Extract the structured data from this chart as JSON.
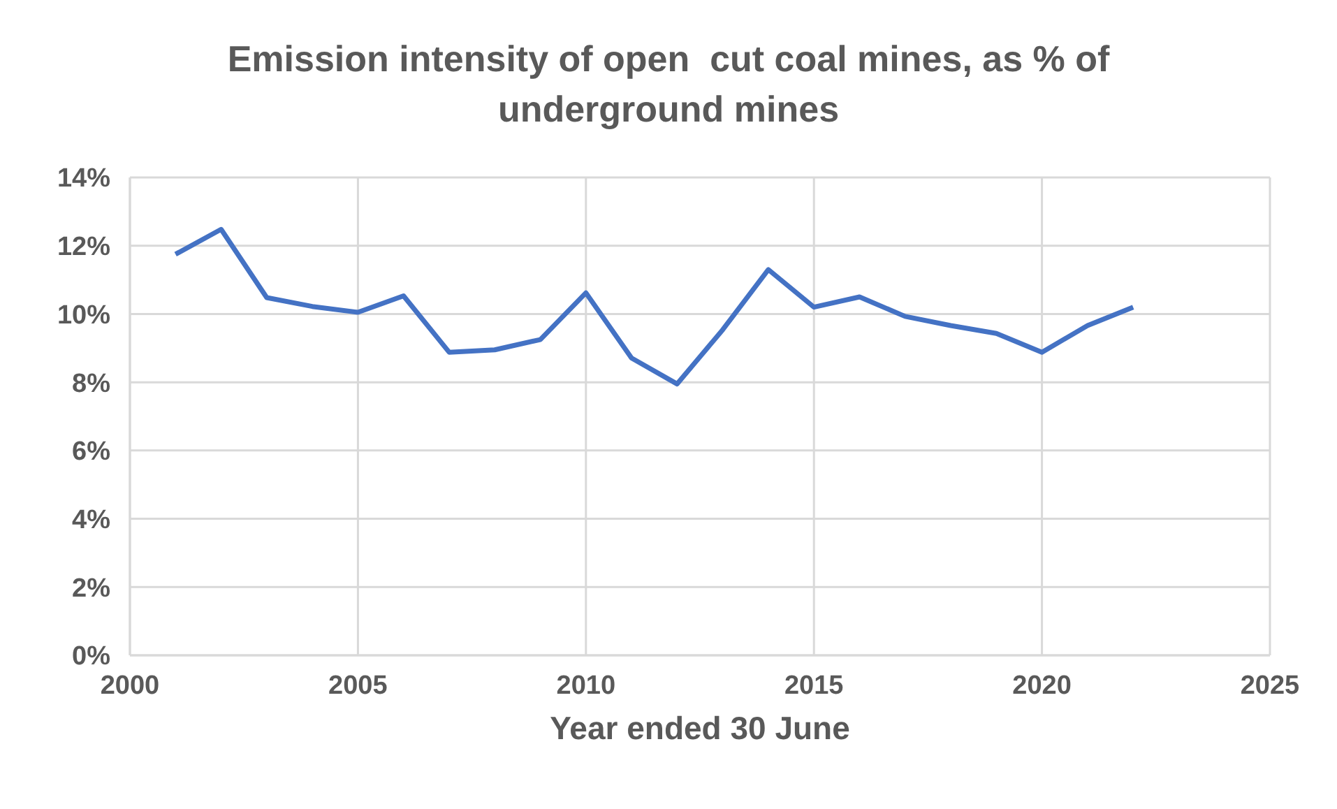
{
  "chart_data": {
    "type": "line",
    "title": "Emission intensity of open  cut coal mines, as % of underground mines",
    "xlabel": "Year ended 30 June",
    "x": [
      2001,
      2002,
      2003,
      2004,
      2005,
      2006,
      2007,
      2008,
      2009,
      2010,
      2011,
      2012,
      2013,
      2014,
      2015,
      2016,
      2017,
      2018,
      2019,
      2020,
      2021,
      2022
    ],
    "series": [
      {
        "color": "#4472c4",
        "values": [
          11.75,
          12.48,
          10.48,
          10.22,
          10.05,
          10.53,
          8.88,
          8.95,
          9.25,
          10.62,
          8.71,
          7.95,
          9.54,
          11.3,
          10.2,
          10.5,
          9.93,
          9.66,
          9.43,
          8.88,
          9.66,
          10.2
        ]
      }
    ],
    "xlim": [
      2000,
      2025
    ],
    "xticks": [
      2000,
      2005,
      2010,
      2015,
      2020,
      2025
    ],
    "ylim": [
      0,
      14
    ],
    "yticks": [
      {
        "value": 0,
        "label": "0%"
      },
      {
        "value": 2,
        "label": "2%"
      },
      {
        "value": 4,
        "label": "4%"
      },
      {
        "value": 6,
        "label": "6%"
      },
      {
        "value": 8,
        "label": "8%"
      },
      {
        "value": 10,
        "label": "10%"
      },
      {
        "value": 12,
        "label": "12%"
      },
      {
        "value": 14,
        "label": "14%"
      }
    ],
    "grid": true,
    "legend": false,
    "marker": "none",
    "line_style": "solid"
  }
}
